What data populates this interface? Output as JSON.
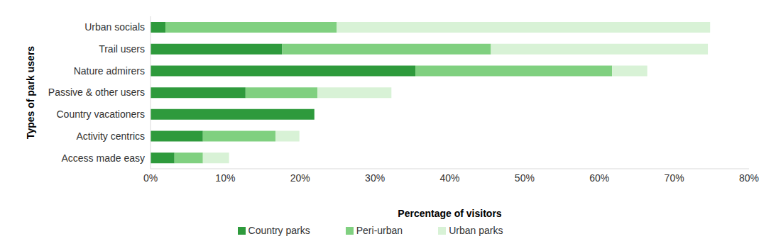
{
  "chart_data": {
    "type": "bar",
    "orientation": "horizontal",
    "stacked": true,
    "grid": false,
    "legend": "bottom",
    "x_label": "Percentage of visitors",
    "y_label": "Types of park users",
    "categories": [
      "Urban socials",
      "Trail users",
      "Nature admirers",
      "Passive & other users",
      "Country vacationers",
      "Activity centrics",
      "Access made easy"
    ],
    "series": [
      {
        "name": "Country parks",
        "color": "#2e9a3c",
        "values": [
          2,
          17.6,
          35.4,
          12.7,
          21.9,
          7.0,
          3.2
        ]
      },
      {
        "name": "Peri-urban",
        "color": "#80d080",
        "values": [
          22.9,
          27.9,
          26.3,
          9.6,
          0,
          9.7,
          3.8
        ]
      },
      {
        "name": "Urban parks",
        "color": "#d8f2d6",
        "values": [
          49.9,
          29,
          4.7,
          9.9,
          0,
          3.2,
          3.5
        ]
      }
    ],
    "xlim": [
      0,
      80
    ],
    "xticks": [
      {
        "value": 0,
        "label": "0%"
      },
      {
        "value": 10,
        "label": "10%"
      },
      {
        "value": 20,
        "label": "20%"
      },
      {
        "value": 30,
        "label": "30%"
      },
      {
        "value": 40,
        "label": "40%"
      },
      {
        "value": 50,
        "label": "50%"
      },
      {
        "value": 60,
        "label": "60%"
      },
      {
        "value": 70,
        "label": "70%"
      },
      {
        "value": 80,
        "label": "80%"
      }
    ]
  }
}
